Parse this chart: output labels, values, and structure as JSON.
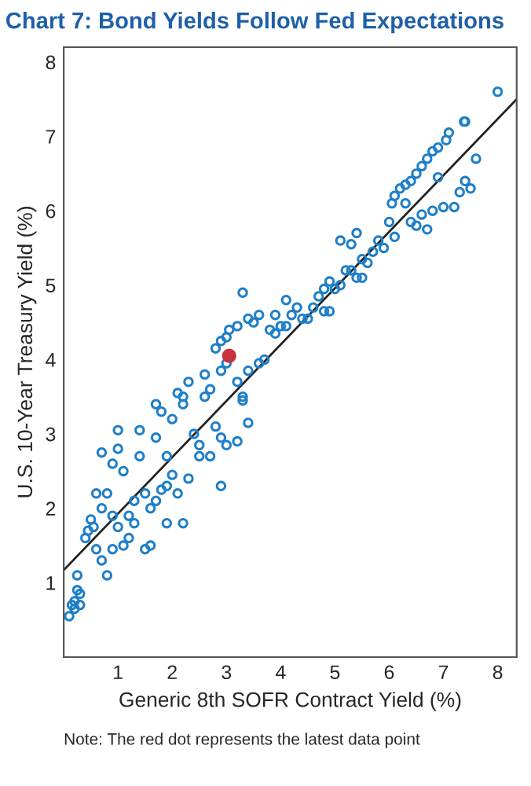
{
  "chart_data": {
    "type": "scatter",
    "title": "Chart 7: Bond Yields Follow Fed Expectations",
    "xlabel": "Generic 8th SOFR Contract Yield (%)",
    "ylabel": "U.S. 10-Year Treasury Yield (%)",
    "annotations": [
      "Note: The red dot represents the latest data point"
    ],
    "xlim": [
      0,
      8.35
    ],
    "ylim": [
      0,
      8.2
    ],
    "xticks": [
      1,
      2,
      3,
      4,
      5,
      6,
      7,
      8
    ],
    "yticks": [
      1,
      2,
      3,
      4,
      5,
      6,
      7,
      8
    ],
    "grid": false,
    "legend": false,
    "series": [
      {
        "color": "#1f7fc8",
        "marker": "circle",
        "x": [
          8.0,
          7.4,
          7.38,
          7.1,
          7.05,
          6.9,
          6.8,
          6.7,
          6.6,
          6.5,
          6.4,
          6.3,
          6.2,
          6.1,
          6.05,
          7.6,
          7.5,
          7.4,
          7.3,
          7.2,
          7.0,
          6.9,
          6.8,
          6.7,
          6.6,
          6.5,
          6.4,
          6.3,
          6.1,
          6.0,
          5.9,
          5.8,
          5.7,
          5.6,
          5.5,
          5.4,
          5.5,
          5.3,
          5.2,
          5.1,
          5.3,
          5.4,
          5.1,
          5.0,
          4.9,
          4.8,
          4.7,
          4.6,
          4.5,
          4.4,
          4.3,
          4.2,
          4.1,
          4.0,
          3.9,
          3.8,
          3.6,
          3.5,
          3.3,
          3.4,
          3.2,
          3.0,
          2.9,
          2.8,
          3.05,
          3.4,
          3.6,
          3.7,
          3.9,
          4.1,
          4.9,
          4.8,
          2.6,
          2.6,
          2.7,
          2.9,
          3.0,
          3.2,
          3.3,
          3.3,
          2.8,
          2.2,
          2.1,
          2.3,
          1.8,
          1.7,
          2.0,
          2.2,
          1.0,
          1.4,
          1.7,
          2.4,
          2.5,
          2.9,
          3.0,
          3.2,
          3.4,
          2.9,
          0.7,
          0.9,
          1.0,
          1.1,
          1.4,
          1.9,
          2.5,
          2.7,
          0.6,
          0.8,
          0.7,
          0.9,
          0.5,
          0.45,
          0.4,
          0.55,
          0.6,
          0.7,
          0.8,
          0.9,
          1.1,
          1.2,
          1.3,
          1.0,
          1.5,
          1.6,
          1.5,
          1.6,
          1.7,
          1.8,
          1.9,
          2.0,
          2.1,
          2.2,
          1.9,
          2.3,
          1.3,
          1.2,
          0.1,
          0.15,
          0.2,
          0.25,
          0.3,
          0.3,
          0.25,
          0.2
        ],
        "values": [
          7.6,
          7.2,
          7.2,
          7.05,
          6.95,
          6.85,
          6.8,
          6.7,
          6.6,
          6.5,
          6.4,
          6.35,
          6.3,
          6.2,
          6.1,
          6.7,
          6.3,
          6.4,
          6.25,
          6.05,
          6.05,
          6.45,
          6.0,
          5.75,
          5.95,
          5.8,
          5.85,
          6.1,
          5.65,
          5.85,
          5.5,
          5.6,
          5.45,
          5.3,
          5.35,
          5.1,
          5.1,
          5.2,
          5.2,
          5.0,
          5.55,
          5.7,
          5.6,
          4.95,
          5.05,
          4.95,
          4.85,
          4.7,
          4.55,
          4.55,
          4.7,
          4.6,
          4.45,
          4.45,
          4.35,
          4.4,
          4.6,
          4.5,
          4.9,
          4.55,
          4.45,
          4.3,
          4.25,
          4.15,
          4.4,
          3.85,
          3.95,
          4.0,
          4.6,
          4.8,
          4.65,
          4.65,
          3.8,
          3.5,
          3.6,
          3.85,
          3.95,
          3.7,
          3.5,
          3.45,
          3.1,
          3.5,
          3.55,
          3.7,
          3.3,
          3.4,
          3.2,
          3.4,
          3.05,
          3.05,
          2.95,
          3.0,
          2.85,
          2.95,
          2.85,
          2.9,
          3.15,
          2.3,
          2.75,
          2.6,
          2.8,
          2.5,
          2.7,
          2.7,
          2.7,
          2.7,
          2.2,
          2.2,
          2.0,
          1.9,
          1.85,
          1.7,
          1.6,
          1.75,
          1.45,
          1.3,
          1.1,
          1.45,
          1.5,
          1.6,
          1.8,
          1.75,
          1.45,
          1.5,
          2.2,
          2.0,
          2.1,
          2.25,
          2.3,
          2.45,
          2.2,
          1.8,
          1.8,
          2.4,
          2.1,
          1.9,
          0.55,
          0.7,
          0.65,
          0.9,
          0.85,
          0.7,
          1.1,
          0.75
        ]
      },
      {
        "color": "#c8323c",
        "marker": "circle",
        "x": [
          3.05
        ],
        "values": [
          4.05
        ]
      },
      {
        "type": "line",
        "marker": "none",
        "color": "#222222",
        "x": [
          0,
          8.35
        ],
        "values": [
          1.17,
          7.5
        ]
      }
    ]
  }
}
